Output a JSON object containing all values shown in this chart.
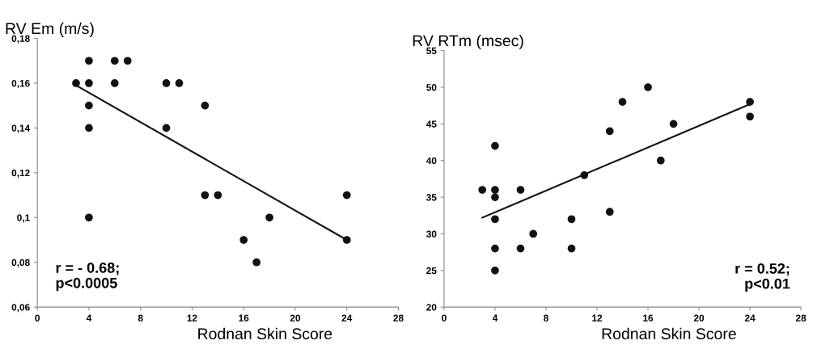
{
  "chart_data": [
    {
      "type": "scatter",
      "title": "RV Em (m/s)",
      "xlabel": "Rodnan Skin Score",
      "xlim": [
        0,
        28
      ],
      "xticks": [
        0,
        4,
        8,
        12,
        16,
        20,
        24,
        28
      ],
      "ylim": [
        0.06,
        0.18
      ],
      "yticks": [
        {
          "value": 0.06,
          "label": "0,06"
        },
        {
          "value": 0.08,
          "label": "0,08"
        },
        {
          "value": 0.1,
          "label": "0,1"
        },
        {
          "value": 0.12,
          "label": "0,12"
        },
        {
          "value": 0.14,
          "label": "0,14"
        },
        {
          "value": 0.16,
          "label": "0,16"
        },
        {
          "value": 0.18,
          "label": "0,18"
        }
      ],
      "grid": false,
      "legend": false,
      "marker": "circle",
      "series": [
        {
          "color": "#111111",
          "x": [
            3,
            4,
            4,
            4,
            4,
            4,
            6,
            6,
            7,
            10,
            10,
            11,
            13,
            13,
            14,
            16,
            17,
            18,
            24,
            24
          ],
          "values": [
            0.16,
            0.17,
            0.16,
            0.15,
            0.14,
            0.1,
            0.17,
            0.16,
            0.17,
            0.16,
            0.14,
            0.16,
            0.15,
            0.11,
            0.11,
            0.09,
            0.08,
            0.1,
            0.11,
            0.09
          ]
        },
        {
          "type": "line",
          "color": "#111111",
          "marker": "none",
          "x": [
            3,
            24
          ],
          "values": [
            0.159,
            0.09
          ]
        }
      ],
      "annotations": [
        "r = - 0.68;\np<0.0005"
      ]
    },
    {
      "type": "scatter",
      "title": "RV RTm (msec)",
      "xlabel": "Rodnan Skin Score",
      "xlim": [
        0,
        28
      ],
      "xticks": [
        0,
        4,
        8,
        12,
        16,
        20,
        24,
        28
      ],
      "ylim": [
        20,
        55
      ],
      "yticks": [
        20,
        25,
        30,
        35,
        40,
        45,
        50,
        55
      ],
      "grid": false,
      "legend": false,
      "marker": "circle",
      "series": [
        {
          "color": "#111111",
          "x": [
            3,
            4,
            4,
            4,
            4,
            4,
            4,
            6,
            6,
            7,
            10,
            10,
            11,
            13,
            13,
            14,
            16,
            17,
            18,
            24,
            24
          ],
          "values": [
            36,
            42,
            36,
            35,
            32,
            28,
            25,
            36,
            28,
            30,
            32,
            28,
            38,
            44,
            33,
            48,
            50,
            40,
            45,
            48,
            46
          ]
        },
        {
          "type": "line",
          "color": "#111111",
          "marker": "none",
          "x": [
            3,
            24
          ],
          "values": [
            32.2,
            47.7
          ]
        }
      ],
      "annotations": [
        "r = 0.52;\np<0.01"
      ]
    }
  ]
}
